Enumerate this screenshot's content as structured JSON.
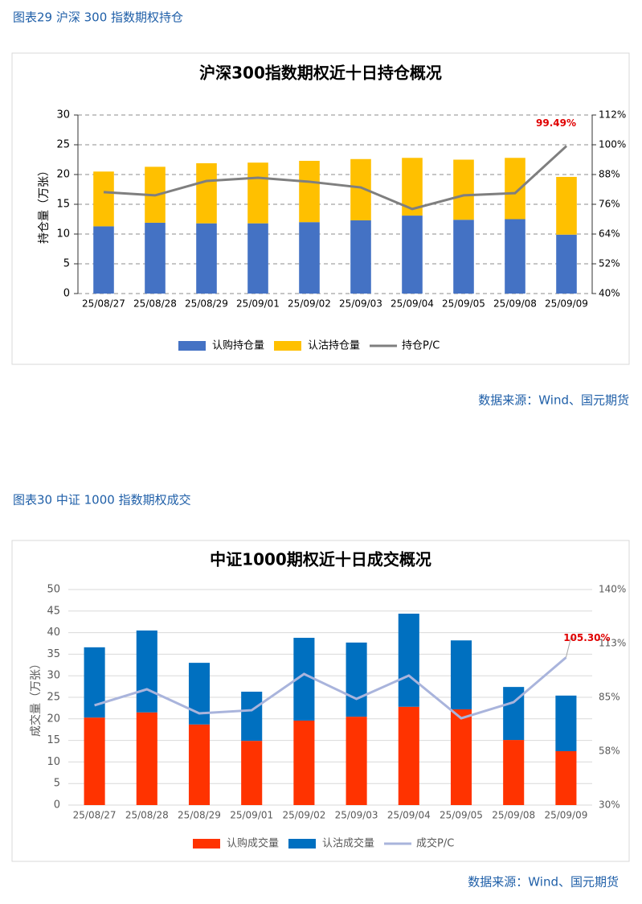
{
  "chart_data": [
    {
      "type": "bar",
      "stacked": true,
      "caption": "图表29  沪深 300 指数期权持仓",
      "title": "沪深300指数期权近十日持仓概况",
      "y_label": "持仓量（万张）",
      "source": "数据来源：Wind、国元期货",
      "categories": [
        "25/08/27",
        "25/08/28",
        "25/08/29",
        "25/09/01",
        "25/09/02",
        "25/09/03",
        "25/09/04",
        "25/09/05",
        "25/09/08",
        "25/09/09"
      ],
      "series": [
        {
          "name": "认购持仓量",
          "color": "#4472c4",
          "values": [
            11.3,
            11.9,
            11.8,
            11.8,
            12.0,
            12.3,
            13.1,
            12.4,
            12.5,
            9.9
          ]
        },
        {
          "name": "认沽持仓量",
          "color": "#ffc000",
          "values": [
            9.2,
            9.4,
            10.1,
            10.2,
            10.3,
            10.3,
            9.7,
            10.1,
            10.3,
            9.7
          ]
        },
        {
          "name": "持仓P/C",
          "type": "line",
          "axis": "y2",
          "color": "#7f7f7f",
          "values": [
            80.9,
            79.6,
            85.4,
            86.7,
            85.1,
            82.8,
            74.1,
            79.6,
            80.5,
            99.49
          ],
          "value_labels": [
            null,
            null,
            null,
            null,
            null,
            null,
            null,
            null,
            null,
            "99.49%"
          ]
        }
      ],
      "ylim": [
        0,
        30
      ],
      "yticks": [
        0,
        5,
        10,
        15,
        20,
        25,
        30
      ],
      "y2lim": [
        40,
        112
      ],
      "y2ticks": [
        {
          "value": 40,
          "label": "40%"
        },
        {
          "value": 52,
          "label": "52%"
        },
        {
          "value": 64,
          "label": "64%"
        },
        {
          "value": 76,
          "label": "76%"
        },
        {
          "value": 88,
          "label": "88%"
        },
        {
          "value": 100,
          "label": "100%"
        },
        {
          "value": 112,
          "label": "112%"
        }
      ],
      "grid": true,
      "legend": "bottom"
    },
    {
      "type": "bar",
      "stacked": true,
      "caption": "图表30  中证 1000 指数期权成交",
      "title": "中证1000期权近十日成交概况",
      "y_label": "成交量（万张）",
      "source": "数据来源：Wind、国元期货",
      "categories": [
        "25/08/27",
        "25/08/28",
        "25/08/29",
        "25/09/01",
        "25/09/02",
        "25/09/03",
        "25/09/04",
        "25/09/05",
        "25/09/08",
        "25/09/09"
      ],
      "series": [
        {
          "name": "认购成交量",
          "color": "#ff3300",
          "values": [
            20.3,
            21.5,
            18.7,
            14.9,
            19.6,
            20.5,
            22.8,
            22.2,
            15.1,
            12.5
          ]
        },
        {
          "name": "认沽成交量",
          "color": "#0070c0",
          "values": [
            16.3,
            19.0,
            14.3,
            11.4,
            19.2,
            17.2,
            21.6,
            16.0,
            12.3,
            12.9
          ]
        },
        {
          "name": "成交P/C",
          "type": "line",
          "axis": "y2",
          "color": "#a9b4dc",
          "values": [
            80.9,
            89.1,
            76.8,
            78.4,
            96.9,
            84.2,
            96.1,
            74.3,
            82.5,
            105.3
          ],
          "value_labels": [
            null,
            null,
            null,
            null,
            null,
            null,
            null,
            null,
            null,
            "105.30%"
          ]
        }
      ],
      "ylim": [
        0,
        50
      ],
      "yticks": [
        0,
        5,
        10,
        15,
        20,
        25,
        30,
        35,
        40,
        45,
        50
      ],
      "y2lim": [
        30,
        140
      ],
      "y2ticks": [
        {
          "value": 30,
          "label": "30%"
        },
        {
          "value": 57.5,
          "label": "58%"
        },
        {
          "value": 85,
          "label": "85%"
        },
        {
          "value": 112.5,
          "label": "113%"
        },
        {
          "value": 140,
          "label": "140%"
        }
      ],
      "grid": true,
      "legend": "bottom"
    }
  ]
}
